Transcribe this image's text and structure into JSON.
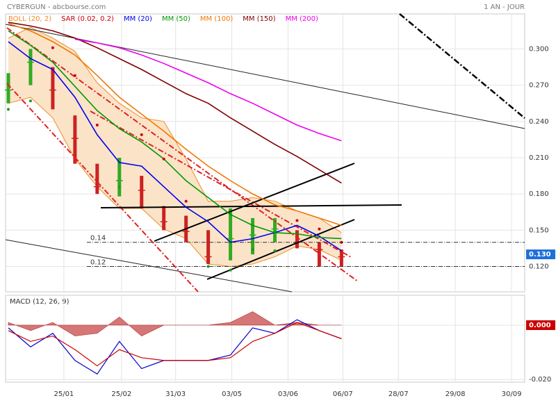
{
  "chart_data": [
    {
      "type": "line",
      "title": "CYBERGUN - abcbourse.com",
      "period": "1 AN - JOUR",
      "x": [
        1,
        9,
        17,
        25,
        33,
        41,
        49,
        57,
        65,
        73,
        81,
        89,
        97,
        105,
        113,
        121
      ],
      "xlim": [
        0,
        187
      ],
      "ylim": [
        0.099,
        0.329
      ],
      "yticks": [
        {
          "value": 0.3,
          "label": "0.300"
        },
        {
          "value": 0.27,
          "label": "0.270"
        },
        {
          "value": 0.24,
          "label": "0.240"
        },
        {
          "value": 0.21,
          "label": "0.210"
        },
        {
          "value": 0.18,
          "label": "0.180"
        },
        {
          "value": 0.15,
          "label": "0.150"
        },
        {
          "value": 0.12,
          "label": "0.120"
        }
      ],
      "price": {
        "up_color": "#33aa22",
        "down_color": "#cc2222",
        "values": [
          0.266,
          0.289,
          0.266,
          0.226,
          0.186,
          0.191,
          0.183,
          0.157,
          0.149,
          0.128,
          0.143,
          0.146,
          0.151,
          0.14,
          0.134,
          0.128
        ],
        "high": [
          0.28,
          0.3,
          0.285,
          0.245,
          0.205,
          0.21,
          0.195,
          0.17,
          0.162,
          0.15,
          0.168,
          0.16,
          0.16,
          0.15,
          0.14,
          0.134
        ],
        "low": [
          0.255,
          0.27,
          0.25,
          0.205,
          0.18,
          0.178,
          0.168,
          0.15,
          0.14,
          0.122,
          0.125,
          0.13,
          0.14,
          0.135,
          0.12,
          0.12
        ]
      },
      "bollinger": {
        "name": "BOLL (20, 2)",
        "color": "#f08a24",
        "fill": "#fbe3c8",
        "upper": [
          0.309,
          0.318,
          0.309,
          0.298,
          0.272,
          0.255,
          0.243,
          0.24,
          0.209,
          0.174,
          0.174,
          0.177,
          0.174,
          0.166,
          0.16,
          0.148
        ],
        "lower": [
          0.255,
          0.26,
          0.243,
          0.209,
          0.186,
          0.168,
          0.168,
          0.151,
          0.143,
          0.122,
          0.12,
          0.122,
          0.128,
          0.137,
          0.134,
          0.125
        ]
      },
      "sar": {
        "name": "SAR (0.02, 0.2)",
        "color": "#cc0000",
        "up_color": "#229922",
        "values": [
          0.25,
          0.257,
          0.301,
          0.278,
          0.237,
          0.186,
          0.229,
          0.209,
          0.174,
          0.12,
          0.117,
          0.134,
          0.133,
          0.158,
          0.151,
          0.14
        ]
      },
      "series": [
        {
          "name": "MM (20)",
          "color": "#0000ee",
          "values": [
            0.306,
            0.292,
            0.283,
            0.26,
            0.229,
            0.206,
            0.203,
            0.186,
            0.169,
            0.157,
            0.14,
            0.143,
            0.148,
            0.154,
            0.145,
            0.133
          ]
        },
        {
          "name": "MM (50)",
          "color": "#009900",
          "values": [
            0.315,
            0.303,
            0.289,
            0.269,
            0.249,
            0.234,
            0.223,
            0.209,
            0.191,
            0.177,
            0.163,
            0.154,
            0.148,
            0.147,
            0.144,
            0.143
          ]
        },
        {
          "name": "MM (100)",
          "color": "#f07800",
          "values": [
            0.321,
            0.315,
            0.306,
            0.295,
            0.278,
            0.26,
            0.246,
            0.232,
            0.217,
            0.203,
            0.191,
            0.18,
            0.171,
            0.166,
            0.16,
            0.154
          ]
        },
        {
          "name": "MM (150)",
          "color": "#800000",
          "values": [
            0.322,
            0.319,
            0.315,
            0.309,
            0.301,
            0.292,
            0.283,
            0.273,
            0.263,
            0.255,
            0.243,
            0.232,
            0.221,
            0.211,
            0.2,
            0.189
          ]
        },
        {
          "name": "MM (200)",
          "color": "#ee00ee",
          "values": [
            null,
            null,
            null,
            0.308,
            0.305,
            0.301,
            0.295,
            0.288,
            0.28,
            0.272,
            0.263,
            0.255,
            0.246,
            0.237,
            0.23,
            0.224
          ]
        }
      ],
      "annotations": [
        0.14,
        0.12
      ],
      "last_value": {
        "value": 0.13,
        "label": "0.130",
        "color": "#1e6fd9"
      }
    },
    {
      "type": "macd",
      "title": "MACD (12, 26, 9)",
      "x": [
        1,
        9,
        17,
        25,
        33,
        41,
        49,
        57,
        65,
        73,
        81,
        89,
        97,
        105,
        113,
        121
      ],
      "xlim": [
        0,
        187
      ],
      "ylim": [
        -0.021,
        0.011
      ],
      "yticks": [
        {
          "value": 0,
          "label": "0.000"
        },
        {
          "value": -0.02,
          "label": "-0.020"
        }
      ],
      "xticks": [
        {
          "value": 21,
          "label": "25/01"
        },
        {
          "value": 41.75,
          "label": "25/02"
        },
        {
          "value": 61.25,
          "label": "31/03"
        },
        {
          "value": 81.5,
          "label": "03/05"
        },
        {
          "value": 101.75,
          "label": "03/06"
        },
        {
          "value": 121.5,
          "label": "06/07"
        },
        {
          "value": 141.5,
          "label": "28/07"
        },
        {
          "value": 162,
          "label": "29/08"
        },
        {
          "value": 182.25,
          "label": "30/09"
        }
      ],
      "histogram": {
        "color": "#cc5555",
        "values": [
          0.001,
          -0.002,
          0.001,
          -0.004,
          -0.003,
          0.003,
          -0.004,
          0,
          0,
          0,
          0.001,
          0.005,
          0,
          0.001,
          0,
          0
        ]
      },
      "series": [
        {
          "color": "#0000cc",
          "values": [
            -0.001,
            -0.008,
            -0.003,
            -0.013,
            -0.018,
            -0.006,
            -0.016,
            -0.013,
            -0.013,
            -0.013,
            -0.011,
            -0.001,
            -0.003,
            0.002,
            -0.002,
            -0.005
          ]
        },
        {
          "color": "#cc0000",
          "values": [
            -0.002,
            -0.006,
            -0.004,
            -0.009,
            -0.015,
            -0.009,
            -0.012,
            -0.013,
            -0.013,
            -0.013,
            -0.012,
            -0.006,
            -0.003,
            0.001,
            -0.002,
            -0.005
          ]
        }
      ],
      "last_value": {
        "value": 0,
        "label": "0.000",
        "color": "#cc0000"
      }
    }
  ]
}
